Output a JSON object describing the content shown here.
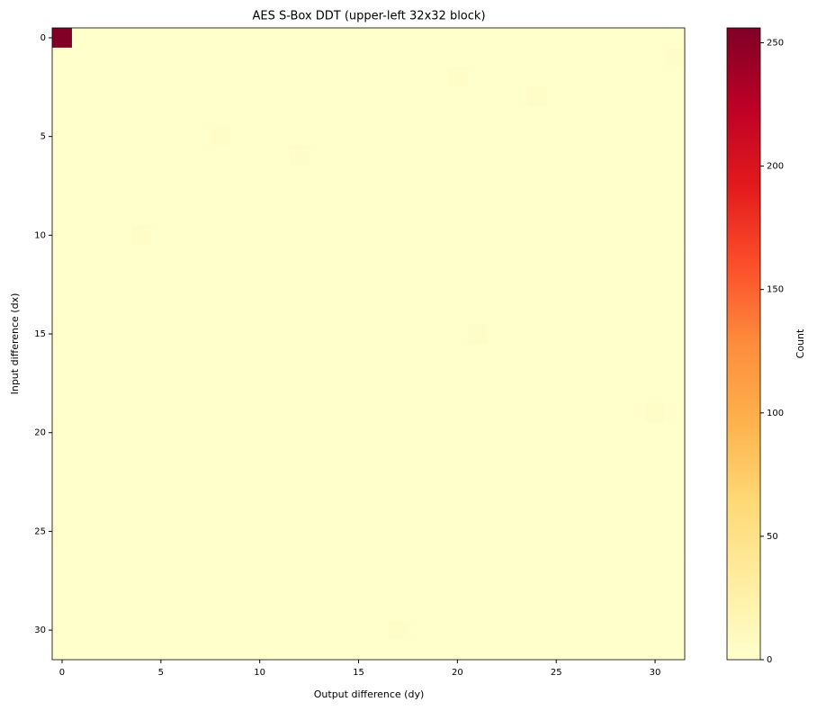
{
  "chart_data": {
    "type": "heatmap",
    "title": "AES S-Box DDT (upper-left 32x32 block)",
    "x_label": "Output difference (dy)",
    "y_label": "Input difference (dx)",
    "colorbar_label": "Count",
    "colormap": "YlOrRd",
    "xlim": [
      -0.5,
      31.5
    ],
    "ylim": [
      31.5,
      -0.5
    ],
    "xticks": [
      0,
      5,
      10,
      15,
      20,
      25,
      30
    ],
    "yticks": [
      0,
      5,
      10,
      15,
      20,
      25,
      30
    ],
    "clim": [
      0,
      256
    ],
    "colorbar_ticks": [
      0,
      50,
      100,
      150,
      200,
      250
    ],
    "z": [
      [
        256,
        0,
        0,
        0,
        0,
        0,
        0,
        0,
        0,
        0,
        0,
        0,
        0,
        0,
        0,
        0,
        0,
        0,
        0,
        0,
        0,
        0,
        0,
        0,
        0,
        0,
        0,
        0,
        0,
        0,
        0,
        0
      ],
      [
        0,
        0,
        0,
        0,
        0,
        0,
        0,
        0,
        0,
        0,
        0,
        0,
        0,
        0,
        0,
        0,
        0,
        0,
        0,
        0,
        0,
        0,
        0,
        0,
        0,
        0,
        0,
        0,
        0,
        0,
        0,
        4
      ],
      [
        0,
        0,
        0,
        0,
        0,
        0,
        0,
        0,
        0,
        0,
        0,
        0,
        0,
        0,
        0,
        0,
        0,
        0,
        0,
        0,
        4,
        0,
        0,
        0,
        0,
        0,
        0,
        0,
        0,
        0,
        0,
        0
      ],
      [
        0,
        0,
        0,
        0,
        0,
        0,
        0,
        0,
        0,
        0,
        0,
        0,
        0,
        0,
        0,
        0,
        0,
        0,
        0,
        0,
        0,
        0,
        0,
        0,
        4,
        0,
        0,
        0,
        0,
        0,
        0,
        0
      ],
      [
        0,
        0,
        0,
        0,
        0,
        0,
        0,
        0,
        0,
        0,
        0,
        0,
        0,
        0,
        0,
        0,
        0,
        0,
        0,
        0,
        0,
        0,
        0,
        0,
        0,
        0,
        0,
        0,
        0,
        0,
        0,
        0
      ],
      [
        0,
        0,
        0,
        0,
        0,
        0,
        0,
        0,
        4,
        0,
        0,
        0,
        0,
        0,
        0,
        0,
        0,
        0,
        0,
        0,
        0,
        0,
        0,
        0,
        0,
        0,
        0,
        0,
        0,
        0,
        0,
        0
      ],
      [
        0,
        0,
        0,
        0,
        0,
        0,
        0,
        0,
        0,
        0,
        0,
        0,
        4,
        0,
        0,
        0,
        0,
        0,
        0,
        0,
        0,
        0,
        0,
        0,
        0,
        0,
        0,
        0,
        0,
        0,
        0,
        0
      ],
      [
        0,
        0,
        0,
        0,
        0,
        0,
        0,
        0,
        0,
        0,
        0,
        0,
        0,
        0,
        0,
        0,
        0,
        0,
        0,
        0,
        0,
        0,
        0,
        0,
        0,
        0,
        0,
        0,
        0,
        0,
        0,
        0
      ],
      [
        0,
        0,
        0,
        0,
        0,
        0,
        0,
        0,
        0,
        0,
        0,
        0,
        0,
        0,
        0,
        0,
        0,
        0,
        0,
        0,
        0,
        0,
        0,
        0,
        0,
        0,
        0,
        0,
        0,
        0,
        0,
        0
      ],
      [
        0,
        0,
        0,
        0,
        0,
        0,
        0,
        0,
        0,
        0,
        0,
        0,
        0,
        0,
        0,
        0,
        0,
        0,
        0,
        0,
        0,
        0,
        0,
        0,
        0,
        0,
        0,
        0,
        0,
        0,
        0,
        0
      ],
      [
        0,
        0,
        0,
        0,
        4,
        0,
        0,
        0,
        0,
        0,
        0,
        0,
        0,
        0,
        0,
        0,
        0,
        0,
        0,
        0,
        0,
        0,
        0,
        0,
        0,
        0,
        0,
        0,
        0,
        0,
        0,
        0
      ],
      [
        0,
        0,
        0,
        0,
        0,
        0,
        0,
        0,
        0,
        0,
        0,
        0,
        0,
        0,
        0,
        0,
        0,
        0,
        0,
        0,
        0,
        0,
        0,
        0,
        0,
        0,
        0,
        0,
        0,
        0,
        0,
        0
      ],
      [
        0,
        0,
        0,
        0,
        0,
        0,
        0,
        0,
        0,
        0,
        0,
        0,
        0,
        0,
        0,
        0,
        0,
        0,
        0,
        0,
        0,
        0,
        0,
        0,
        0,
        0,
        0,
        0,
        0,
        0,
        0,
        0
      ],
      [
        0,
        0,
        0,
        0,
        0,
        0,
        0,
        0,
        0,
        0,
        0,
        0,
        0,
        0,
        0,
        0,
        0,
        0,
        0,
        0,
        0,
        0,
        0,
        0,
        0,
        0,
        0,
        0,
        0,
        0,
        0,
        0
      ],
      [
        0,
        0,
        0,
        0,
        0,
        0,
        0,
        0,
        0,
        0,
        0,
        0,
        0,
        0,
        0,
        0,
        0,
        0,
        0,
        0,
        0,
        0,
        0,
        0,
        0,
        0,
        0,
        0,
        0,
        0,
        0,
        0
      ],
      [
        0,
        0,
        0,
        0,
        0,
        0,
        0,
        0,
        0,
        0,
        0,
        0,
        0,
        0,
        0,
        0,
        0,
        0,
        0,
        0,
        0,
        4,
        0,
        0,
        0,
        0,
        0,
        0,
        0,
        0,
        0,
        0
      ],
      [
        0,
        0,
        0,
        0,
        0,
        0,
        0,
        0,
        0,
        0,
        0,
        0,
        0,
        0,
        0,
        0,
        0,
        0,
        0,
        0,
        0,
        0,
        0,
        0,
        0,
        0,
        0,
        0,
        0,
        0,
        0,
        0
      ],
      [
        0,
        0,
        0,
        0,
        0,
        0,
        0,
        0,
        0,
        0,
        0,
        0,
        0,
        0,
        0,
        0,
        0,
        0,
        0,
        0,
        0,
        0,
        0,
        0,
        0,
        0,
        0,
        0,
        0,
        0,
        0,
        0
      ],
      [
        0,
        0,
        0,
        0,
        0,
        0,
        0,
        0,
        0,
        0,
        0,
        0,
        0,
        0,
        0,
        0,
        0,
        0,
        0,
        0,
        0,
        0,
        0,
        0,
        0,
        0,
        0,
        0,
        0,
        0,
        0,
        0
      ],
      [
        0,
        0,
        0,
        0,
        0,
        0,
        0,
        0,
        0,
        0,
        0,
        0,
        0,
        0,
        0,
        0,
        0,
        0,
        0,
        0,
        0,
        0,
        0,
        0,
        0,
        0,
        0,
        0,
        0,
        0,
        4,
        0
      ],
      [
        0,
        0,
        0,
        0,
        0,
        0,
        0,
        0,
        0,
        0,
        0,
        0,
        0,
        0,
        0,
        0,
        0,
        0,
        0,
        0,
        0,
        0,
        0,
        0,
        0,
        0,
        0,
        0,
        0,
        0,
        0,
        0
      ],
      [
        0,
        0,
        0,
        0,
        0,
        0,
        0,
        0,
        0,
        0,
        0,
        0,
        0,
        0,
        0,
        0,
        0,
        0,
        0,
        0,
        0,
        0,
        0,
        0,
        0,
        0,
        0,
        0,
        0,
        0,
        0,
        0
      ],
      [
        0,
        0,
        0,
        0,
        0,
        0,
        0,
        0,
        0,
        0,
        0,
        0,
        0,
        0,
        0,
        0,
        0,
        0,
        0,
        0,
        0,
        0,
        0,
        0,
        0,
        0,
        0,
        0,
        0,
        0,
        0,
        0
      ],
      [
        0,
        0,
        0,
        0,
        0,
        0,
        0,
        0,
        0,
        0,
        0,
        0,
        0,
        0,
        0,
        0,
        0,
        0,
        0,
        0,
        0,
        0,
        0,
        0,
        0,
        0,
        0,
        0,
        0,
        0,
        0,
        0
      ],
      [
        0,
        0,
        0,
        0,
        0,
        0,
        0,
        0,
        0,
        0,
        0,
        0,
        0,
        0,
        0,
        0,
        0,
        0,
        0,
        0,
        0,
        0,
        0,
        0,
        0,
        0,
        0,
        0,
        0,
        0,
        0,
        0
      ],
      [
        0,
        0,
        0,
        0,
        0,
        0,
        0,
        0,
        0,
        0,
        0,
        0,
        0,
        0,
        0,
        0,
        0,
        0,
        0,
        0,
        0,
        0,
        0,
        0,
        0,
        0,
        0,
        0,
        0,
        0,
        0,
        0
      ],
      [
        0,
        0,
        0,
        0,
        0,
        0,
        0,
        0,
        0,
        0,
        0,
        0,
        0,
        0,
        0,
        0,
        0,
        0,
        0,
        0,
        0,
        0,
        0,
        0,
        0,
        0,
        0,
        0,
        0,
        0,
        0,
        0
      ],
      [
        0,
        0,
        0,
        0,
        0,
        0,
        0,
        0,
        0,
        0,
        0,
        0,
        0,
        0,
        0,
        0,
        0,
        0,
        0,
        0,
        0,
        0,
        0,
        0,
        0,
        0,
        0,
        0,
        0,
        0,
        0,
        0
      ],
      [
        0,
        0,
        0,
        0,
        0,
        0,
        0,
        0,
        0,
        0,
        0,
        0,
        0,
        0,
        0,
        0,
        0,
        0,
        0,
        0,
        0,
        0,
        0,
        0,
        0,
        0,
        0,
        0,
        0,
        0,
        0,
        0
      ],
      [
        0,
        0,
        0,
        0,
        0,
        0,
        0,
        0,
        0,
        0,
        0,
        0,
        0,
        0,
        0,
        0,
        0,
        0,
        0,
        0,
        0,
        0,
        0,
        0,
        0,
        0,
        0,
        0,
        0,
        0,
        0,
        0
      ],
      [
        0,
        0,
        0,
        0,
        0,
        0,
        0,
        0,
        0,
        0,
        0,
        0,
        0,
        0,
        0,
        0,
        0,
        4,
        0,
        0,
        0,
        0,
        0,
        0,
        0,
        0,
        0,
        0,
        0,
        0,
        0,
        0
      ],
      [
        0,
        0,
        0,
        0,
        0,
        0,
        0,
        0,
        0,
        0,
        0,
        0,
        0,
        0,
        0,
        0,
        0,
        0,
        0,
        0,
        0,
        0,
        0,
        0,
        0,
        0,
        0,
        0,
        0,
        0,
        0,
        0
      ]
    ]
  }
}
